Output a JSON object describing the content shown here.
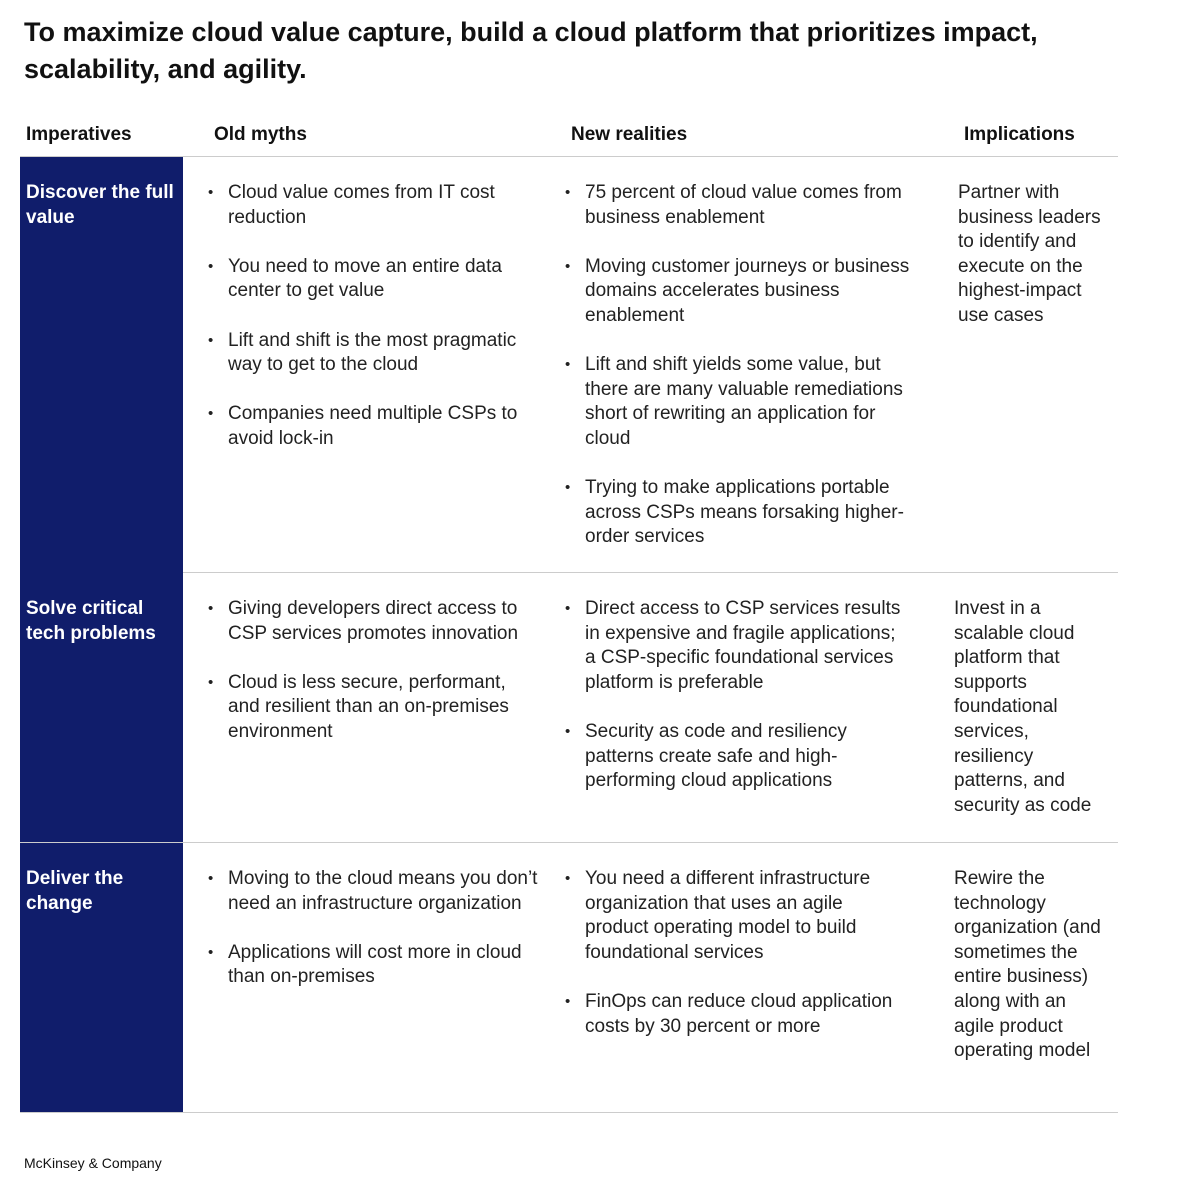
{
  "header": {
    "title": "To maximize cloud value capture, build a cloud platform that prioritizes impact, scalability, and agility."
  },
  "table": {
    "columns": [
      "Imperatives",
      "Old myths",
      "New realities",
      "Implications"
    ],
    "rows": [
      {
        "imperative": "Discover the full value",
        "old_myths": [
          "Cloud value comes from IT cost reduction",
          "You need to move an entire data center to get value",
          "Lift and shift is the most pragmatic way to get to the cloud",
          "Companies need multiple CSPs to avoid lock-in"
        ],
        "new_realities": [
          "75 percent of cloud value comes from business enablement",
          "Moving customer journeys or business domains accelerates business enablement",
          "Lift and shift yields some value, but there are many valuable remediations short of rewriting an application for cloud",
          "Trying to make applications portable across CSPs means forsaking higher-order services"
        ],
        "implication": "Partner with business leaders to identify and execute on the highest-impact use cases"
      },
      {
        "imperative": "Solve critical tech problems",
        "old_myths": [
          "Giving developers direct access to CSP services promotes innovation",
          "Cloud is less secure, performant, and resilient than an on-premises environment"
        ],
        "new_realities": [
          "Direct access to CSP services results in expensive and fragile applications; a CSP-specific foundational services platform is preferable",
          "Security as code and resiliency patterns create safe and high-performing cloud applications"
        ],
        "implication": "Invest in a scalable cloud platform that supports foundational services, resiliency patterns, and security as code"
      },
      {
        "imperative": "Deliver the change",
        "old_myths": [
          "Moving to the cloud means you don’t need an infrastructure organization",
          "Applications will cost more in cloud than on-premises"
        ],
        "new_realities": [
          "You need a different infrastructure organization that uses an agile product operating model to build foundational services",
          "FinOps can reduce cloud application costs by 30 percent or more"
        ],
        "implication": "Rewire the technology organization (and sometimes the entire business) along with an agile product operating model"
      }
    ]
  },
  "footer": "McKinsey & Company"
}
